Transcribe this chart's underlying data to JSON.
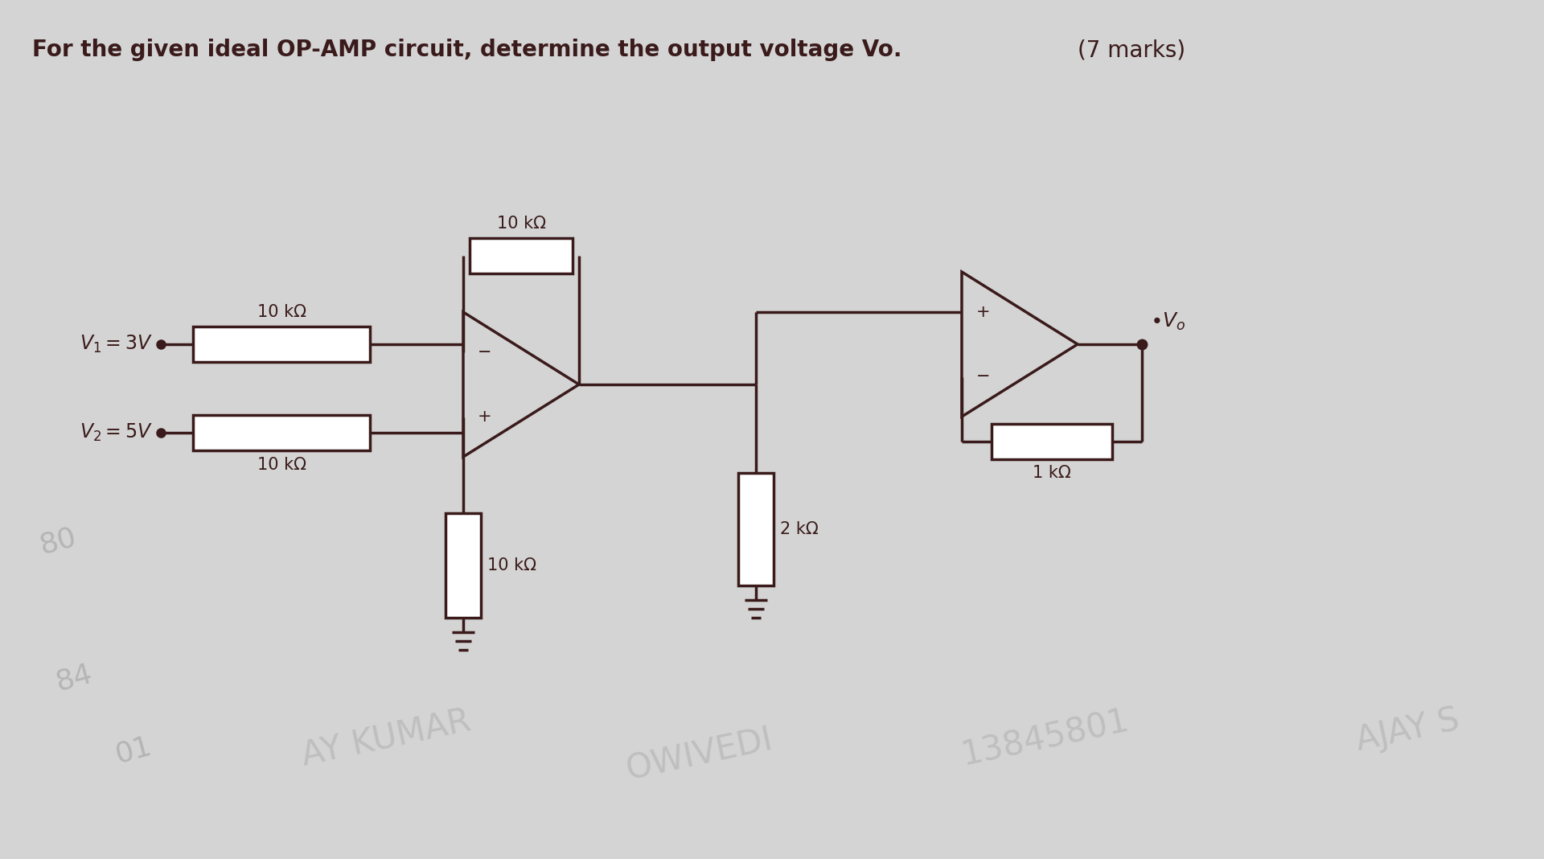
{
  "title": "For the given ideal OP-AMP circuit, determine the output voltage Vo.",
  "marks": "(7 marks)",
  "bg_color": "#d4d4d4",
  "line_color": "#3a1a1a",
  "title_fontsize": 20,
  "circuit": {
    "v1_label": "V₁ = 3V",
    "v2_label": "V₂ = 5V",
    "vo_label": "Vₒ",
    "r1_label": "10 kΩ",
    "r2_label": "10 kΩ",
    "r3_label": "10 kΩ",
    "r4_label": "10 kΩ",
    "r5_label": "2 kΩ",
    "r6_label": "1 kΩ"
  }
}
